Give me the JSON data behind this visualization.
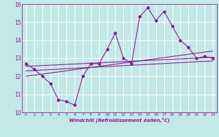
{
  "xlabel": "Windchill (Refroidissement éolien,°C)",
  "bg_color": "#c2e8e8",
  "grid_color": "#ffffff",
  "line_color": "#8b1a8b",
  "spine_color": "#8b1a8b",
  "xlim": [
    -0.5,
    23.5
  ],
  "ylim": [
    10,
    16
  ],
  "xticks": [
    0,
    1,
    2,
    3,
    4,
    5,
    6,
    7,
    8,
    9,
    10,
    11,
    12,
    13,
    14,
    15,
    16,
    17,
    18,
    19,
    20,
    21,
    22,
    23
  ],
  "yticks": [
    10,
    11,
    12,
    13,
    14,
    15,
    16
  ],
  "main_line_x": [
    0,
    1,
    2,
    3,
    4,
    5,
    6,
    7,
    8,
    9,
    10,
    11,
    12,
    13,
    14,
    15,
    16,
    17,
    18,
    19,
    20,
    21,
    22,
    23
  ],
  "main_line_y": [
    12.7,
    12.4,
    12.0,
    11.6,
    10.7,
    10.6,
    10.4,
    12.0,
    12.7,
    12.7,
    13.5,
    14.4,
    13.0,
    12.7,
    15.3,
    15.8,
    15.1,
    15.6,
    14.8,
    14.0,
    13.6,
    13.0,
    13.1,
    13.0
  ],
  "trend1_x": [
    0,
    23
  ],
  "trend1_y": [
    12.55,
    13.05
  ],
  "trend2_x": [
    0,
    23
  ],
  "trend2_y": [
    12.3,
    12.85
  ],
  "trend3_x": [
    0,
    23
  ],
  "trend3_y": [
    12.0,
    13.4
  ]
}
